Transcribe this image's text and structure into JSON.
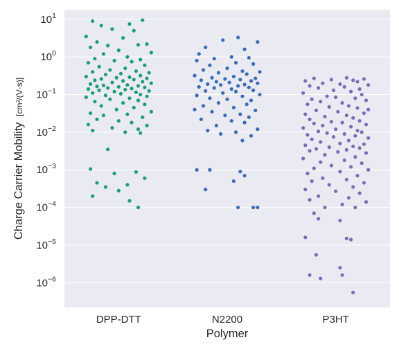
{
  "chart_data": {
    "type": "scatter",
    "subtype": "strip",
    "xlabel": "Polymer",
    "ylabel": "Charge Carrier Mobility",
    "ylabel_units": "[cm²/(V·s)]",
    "yscale": "log",
    "ylim": [
      2.2e-07,
      18
    ],
    "y_ticks": [
      {
        "value": 1e-06,
        "base": "10",
        "exp": "−6"
      },
      {
        "value": 1e-05,
        "base": "10",
        "exp": "−5"
      },
      {
        "value": 0.0001,
        "base": "10",
        "exp": "−4"
      },
      {
        "value": 0.001,
        "base": "10",
        "exp": "−3"
      },
      {
        "value": 0.01,
        "base": "10",
        "exp": "−2"
      },
      {
        "value": 0.1,
        "base": "10",
        "exp": "−1"
      },
      {
        "value": 1,
        "base": "10",
        "exp": "0"
      },
      {
        "value": 10,
        "base": "10",
        "exp": "1"
      }
    ],
    "grid": true,
    "legend": "none",
    "categories": [
      "DPP-DTT",
      "N2200",
      "P3HT"
    ],
    "series": [
      {
        "category": "DPP-DTT",
        "color": "#1b9e77",
        "points": [
          [
            -0.12,
            9.0
          ],
          [
            0.05,
            7.5
          ],
          [
            -0.08,
            6.8
          ],
          [
            0.11,
            9.5
          ],
          [
            -0.03,
            5.5
          ],
          [
            0.07,
            5.0
          ],
          [
            -0.15,
            3.5
          ],
          [
            0.02,
            3.2
          ],
          [
            -0.1,
            2.5
          ],
          [
            0.13,
            2.2
          ],
          [
            -0.05,
            2.0
          ],
          [
            0.09,
            2.1
          ],
          [
            -0.13,
            1.8
          ],
          [
            0.0,
            1.5
          ],
          [
            0.15,
            1.3
          ],
          [
            -0.07,
            1.2
          ],
          [
            0.04,
            1.0
          ],
          [
            -0.11,
            0.9
          ],
          [
            0.1,
            0.85
          ],
          [
            -0.02,
            0.8
          ],
          [
            0.06,
            0.75
          ],
          [
            -0.14,
            0.7
          ],
          [
            0.12,
            0.6
          ],
          [
            -0.09,
            0.55
          ],
          [
            0.03,
            0.5
          ],
          [
            -0.04,
            0.45
          ],
          [
            0.08,
            0.42
          ],
          [
            -0.12,
            0.4
          ],
          [
            0.14,
            0.38
          ],
          [
            0.01,
            0.36
          ],
          [
            -0.06,
            0.34
          ],
          [
            0.1,
            0.32
          ],
          [
            -0.15,
            0.3
          ],
          [
            0.05,
            0.29
          ],
          [
            -0.01,
            0.28
          ],
          [
            0.13,
            0.27
          ],
          [
            -0.08,
            0.26
          ],
          [
            0.07,
            0.25
          ],
          [
            -0.11,
            0.24
          ],
          [
            0.02,
            0.23
          ],
          [
            0.11,
            0.22
          ],
          [
            -0.03,
            0.21
          ],
          [
            0.15,
            0.2
          ],
          [
            -0.13,
            0.19
          ],
          [
            0.04,
            0.18
          ],
          [
            -0.07,
            0.175
          ],
          [
            0.09,
            0.17
          ],
          [
            -0.1,
            0.165
          ],
          [
            0.0,
            0.16
          ],
          [
            0.12,
            0.155
          ],
          [
            -0.05,
            0.15
          ],
          [
            0.06,
            0.145
          ],
          [
            -0.14,
            0.14
          ],
          [
            0.03,
            0.135
          ],
          [
            -0.09,
            0.13
          ],
          [
            0.14,
            0.125
          ],
          [
            -0.02,
            0.12
          ],
          [
            0.08,
            0.115
          ],
          [
            -0.12,
            0.11
          ],
          [
            0.01,
            0.105
          ],
          [
            0.1,
            0.1
          ],
          [
            -0.06,
            0.095
          ],
          [
            0.13,
            0.09
          ],
          [
            -0.15,
            0.085
          ],
          [
            0.05,
            0.08
          ],
          [
            -0.04,
            0.075
          ],
          [
            0.09,
            0.07
          ],
          [
            -0.11,
            0.065
          ],
          [
            0.02,
            0.06
          ],
          [
            0.12,
            0.055
          ],
          [
            -0.08,
            0.05
          ],
          [
            0.07,
            0.045
          ],
          [
            -0.01,
            0.04
          ],
          [
            0.15,
            0.035
          ],
          [
            -0.13,
            0.032
          ],
          [
            0.04,
            0.03
          ],
          [
            -0.07,
            0.028
          ],
          [
            0.11,
            0.025
          ],
          [
            -0.1,
            0.022
          ],
          [
            0.0,
            0.02
          ],
          [
            0.06,
            0.018
          ],
          [
            -0.14,
            0.016
          ],
          [
            0.13,
            0.015
          ],
          [
            -0.03,
            0.013
          ],
          [
            0.09,
            0.012
          ],
          [
            -0.12,
            0.011
          ],
          [
            0.03,
            0.01
          ],
          [
            0.1,
            0.0095
          ],
          [
            -0.05,
            0.0035
          ],
          [
            -0.13,
            0.00105
          ],
          [
            0.08,
            0.00088
          ],
          [
            -0.02,
            0.0008
          ],
          [
            -0.1,
            0.00045
          ],
          [
            0.04,
            0.0004
          ],
          [
            -0.06,
            0.00035
          ],
          [
            0.0,
            0.00028
          ],
          [
            0.12,
            0.0006
          ],
          [
            -0.12,
            0.0002
          ],
          [
            0.05,
            0.00015
          ],
          [
            0.09,
            0.0001
          ]
        ]
      },
      {
        "category": "N2200",
        "color": "#3a6cb5",
        "points": [
          [
            0.05,
            3.3
          ],
          [
            -0.02,
            2.8
          ],
          [
            0.14,
            2.5
          ],
          [
            -0.1,
            1.8
          ],
          [
            0.08,
            1.6
          ],
          [
            -0.13,
            1.2
          ],
          [
            0.02,
            1.0
          ],
          [
            0.1,
            0.95
          ],
          [
            -0.06,
            0.9
          ],
          [
            -0.14,
            0.8
          ],
          [
            0.04,
            0.7
          ],
          [
            0.12,
            0.65
          ],
          [
            -0.08,
            0.6
          ],
          [
            0.0,
            0.5
          ],
          [
            -0.11,
            0.45
          ],
          [
            0.07,
            0.42
          ],
          [
            0.15,
            0.4
          ],
          [
            -0.04,
            0.38
          ],
          [
            0.09,
            0.35
          ],
          [
            -0.15,
            0.32
          ],
          [
            0.03,
            0.3
          ],
          [
            -0.07,
            0.28
          ],
          [
            0.13,
            0.27
          ],
          [
            -0.01,
            0.26
          ],
          [
            0.06,
            0.25
          ],
          [
            -0.12,
            0.24
          ],
          [
            0.11,
            0.23
          ],
          [
            -0.05,
            0.22
          ],
          [
            0.01,
            0.21
          ],
          [
            0.14,
            0.2
          ],
          [
            -0.09,
            0.19
          ],
          [
            0.08,
            0.185
          ],
          [
            -0.03,
            0.18
          ],
          [
            0.05,
            0.17
          ],
          [
            -0.13,
            0.16
          ],
          [
            0.1,
            0.155
          ],
          [
            -0.06,
            0.15
          ],
          [
            0.02,
            0.14
          ],
          [
            0.12,
            0.13
          ],
          [
            -0.1,
            0.125
          ],
          [
            0.04,
            0.12
          ],
          [
            -0.02,
            0.11
          ],
          [
            0.15,
            0.1
          ],
          [
            -0.14,
            0.095
          ],
          [
            0.07,
            0.09
          ],
          [
            -0.08,
            0.08
          ],
          [
            0.0,
            0.075
          ],
          [
            0.11,
            0.07
          ],
          [
            -0.04,
            0.06
          ],
          [
            0.09,
            0.055
          ],
          [
            -0.11,
            0.05
          ],
          [
            0.03,
            0.045
          ],
          [
            -0.15,
            0.04
          ],
          [
            0.13,
            0.038
          ],
          [
            -0.07,
            0.035
          ],
          [
            0.06,
            0.03
          ],
          [
            -0.01,
            0.028
          ],
          [
            0.1,
            0.025
          ],
          [
            -0.12,
            0.022
          ],
          [
            0.02,
            0.02
          ],
          [
            0.08,
            0.018
          ],
          [
            -0.05,
            0.015
          ],
          [
            0.14,
            0.012
          ],
          [
            -0.09,
            0.011
          ],
          [
            0.04,
            0.01
          ],
          [
            -0.03,
            0.009
          ],
          [
            0.11,
            0.008
          ],
          [
            0.07,
            0.006
          ],
          [
            -0.14,
            0.001
          ],
          [
            -0.08,
            0.001
          ],
          [
            0.06,
            0.0009
          ],
          [
            0.03,
            0.0005
          ],
          [
            -0.1,
            0.0003
          ],
          [
            0.05,
            0.0001
          ],
          [
            0.12,
            0.0001
          ],
          [
            0.14,
            0.0001
          ],
          [
            0.08,
            0.0007
          ]
        ]
      },
      {
        "category": "P3HT",
        "color": "#7b6db3",
        "points": [
          [
            0.05,
            0.28
          ],
          [
            -0.1,
            0.27
          ],
          [
            0.13,
            0.26
          ],
          [
            -0.02,
            0.25
          ],
          [
            0.08,
            0.24
          ],
          [
            -0.14,
            0.23
          ],
          [
            0.1,
            0.22
          ],
          [
            -0.06,
            0.2
          ],
          [
            0.02,
            0.19
          ],
          [
            0.15,
            0.18
          ],
          [
            -0.12,
            0.17
          ],
          [
            0.04,
            0.16
          ],
          [
            -0.08,
            0.15
          ],
          [
            0.11,
            0.14
          ],
          [
            -0.01,
            0.13
          ],
          [
            0.07,
            0.12
          ],
          [
            -0.15,
            0.11
          ],
          [
            0.12,
            0.1
          ],
          [
            -0.04,
            0.09
          ],
          [
            0.0,
            0.085
          ],
          [
            0.09,
            0.08
          ],
          [
            -0.11,
            0.075
          ],
          [
            0.14,
            0.07
          ],
          [
            -0.07,
            0.065
          ],
          [
            0.03,
            0.06
          ],
          [
            -0.13,
            0.055
          ],
          [
            0.06,
            0.05
          ],
          [
            -0.03,
            0.047
          ],
          [
            0.1,
            0.044
          ],
          [
            0.15,
            0.04
          ],
          [
            -0.09,
            0.038
          ],
          [
            0.01,
            0.035
          ],
          [
            0.13,
            0.032
          ],
          [
            -0.14,
            0.03
          ],
          [
            0.05,
            0.028
          ],
          [
            -0.05,
            0.026
          ],
          [
            0.08,
            0.024
          ],
          [
            -0.12,
            0.022
          ],
          [
            0.11,
            0.02
          ],
          [
            -0.02,
            0.019
          ],
          [
            0.03,
            0.018
          ],
          [
            -0.1,
            0.017
          ],
          [
            0.14,
            0.016
          ],
          [
            -0.06,
            0.015
          ],
          [
            0.07,
            0.014
          ],
          [
            -0.15,
            0.013
          ],
          [
            0.0,
            0.012
          ],
          [
            0.1,
            0.011
          ],
          [
            -0.08,
            0.0105
          ],
          [
            0.12,
            0.01
          ],
          [
            -0.04,
            0.0095
          ],
          [
            0.04,
            0.009
          ],
          [
            -0.13,
            0.0085
          ],
          [
            0.09,
            0.008
          ],
          [
            -0.01,
            0.0075
          ],
          [
            0.15,
            0.007
          ],
          [
            -0.11,
            0.0065
          ],
          [
            0.06,
            0.006
          ],
          [
            -0.07,
            0.0055
          ],
          [
            0.02,
            0.005
          ],
          [
            0.13,
            0.0048
          ],
          [
            -0.14,
            0.0045
          ],
          [
            0.08,
            0.0042
          ],
          [
            -0.03,
            0.004
          ],
          [
            0.11,
            0.0038
          ],
          [
            -0.09,
            0.0036
          ],
          [
            0.05,
            0.0034
          ],
          [
            -0.12,
            0.0032
          ],
          [
            0.01,
            0.003
          ],
          [
            0.14,
            0.0028
          ],
          [
            -0.05,
            0.0025
          ],
          [
            0.09,
            0.0022
          ],
          [
            -0.15,
            0.002
          ],
          [
            0.04,
            0.0018
          ],
          [
            -0.07,
            0.0016
          ],
          [
            0.12,
            0.0015
          ],
          [
            -0.02,
            0.0013
          ],
          [
            0.07,
            0.0012
          ],
          [
            -0.1,
            0.0011
          ],
          [
            0.15,
            0.001
          ],
          [
            0.02,
            0.0009
          ],
          [
            -0.13,
            0.0008
          ],
          [
            0.1,
            0.0007
          ],
          [
            -0.06,
            0.0006
          ],
          [
            0.05,
            0.00055
          ],
          [
            -0.11,
            0.0005
          ],
          [
            0.13,
            0.00045
          ],
          [
            -0.03,
            0.0004
          ],
          [
            0.08,
            0.00035
          ],
          [
            -0.14,
            0.0003
          ],
          [
            0.0,
            0.00027
          ],
          [
            0.11,
            0.00024
          ],
          [
            -0.08,
            0.0002
          ],
          [
            0.06,
            0.00018
          ],
          [
            -0.12,
            0.00016
          ],
          [
            0.14,
            0.00014
          ],
          [
            0.03,
            0.00012
          ],
          [
            -0.05,
            0.0001
          ],
          [
            0.09,
            0.0001
          ],
          [
            -0.1,
            7e-05
          ],
          [
            -0.08,
            5e-05
          ],
          [
            0.02,
            4.5e-05
          ],
          [
            -0.14,
            1.6e-05
          ],
          [
            0.05,
            1.5e-05
          ],
          [
            0.07,
            1.4e-05
          ],
          [
            -0.09,
            5.5e-06
          ],
          [
            0.02,
            2.5e-06
          ],
          [
            -0.12,
            1.6e-06
          ],
          [
            0.03,
            1.6e-06
          ],
          [
            -0.07,
            1.3e-06
          ],
          [
            0.08,
            5.5e-07
          ]
        ]
      }
    ]
  }
}
